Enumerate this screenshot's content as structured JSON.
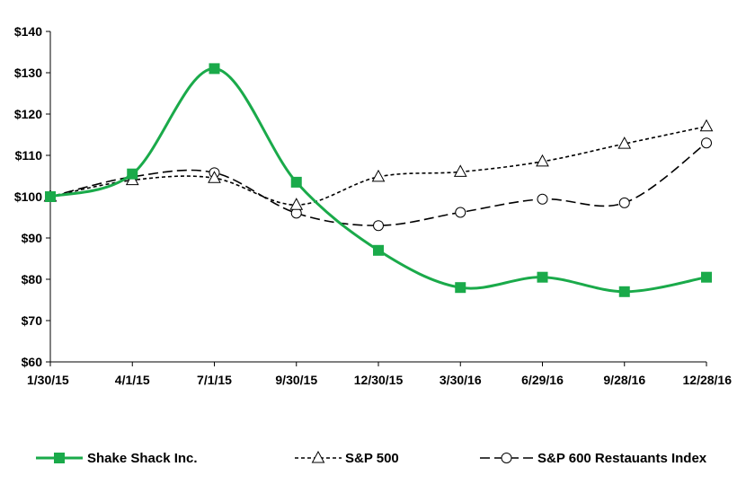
{
  "chart_data": {
    "type": "line",
    "categories": [
      "1/30/15",
      "4/1/15",
      "7/1/15",
      "9/30/15",
      "12/30/15",
      "3/30/16",
      "6/29/16",
      "9/28/16",
      "12/28/16"
    ],
    "ylim": [
      60,
      140
    ],
    "y_ticks": [
      60,
      70,
      80,
      90,
      100,
      110,
      120,
      130,
      140
    ],
    "y_tick_labels": [
      "$60",
      "$70",
      "$80",
      "$90",
      "$100",
      "$110",
      "$120",
      "$130",
      "$140"
    ],
    "grid": false,
    "legend_position": "bottom",
    "series": [
      {
        "name": "Shake Shack Inc.",
        "values": [
          100,
          105.5,
          131,
          103.5,
          87,
          78,
          80.5,
          77,
          80.5
        ],
        "color": "#1aaa4a",
        "marker": "filled-square",
        "line_style": "solid"
      },
      {
        "name": "S&P 500",
        "values": [
          100,
          104,
          104.5,
          98,
          104.8,
          106,
          108.5,
          112.8,
          117
        ],
        "color": "#000000",
        "marker": "open-triangle",
        "line_style": "short-dash"
      },
      {
        "name": "S&P 600 Restauants Index",
        "values": [
          100,
          104.8,
          105.8,
          96,
          93,
          96.2,
          99.4,
          98.5,
          113
        ],
        "color": "#000000",
        "marker": "open-circle",
        "line_style": "long-dash"
      }
    ]
  }
}
